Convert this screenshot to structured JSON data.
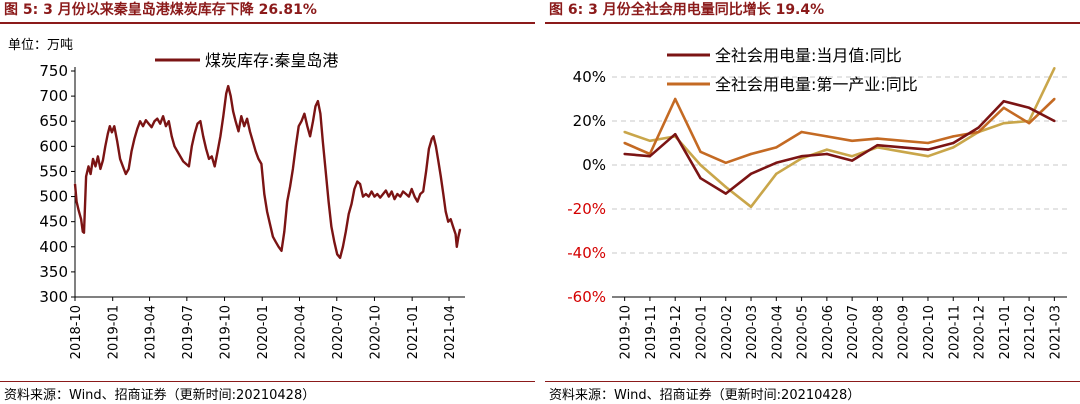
{
  "charts": [
    {
      "figure_title": "图 5:  3 月份以来秦皇岛港煤炭库存下降 26.81%",
      "source": "资料来源：Wind、招商证券（更新时间:20210428）",
      "chart_data": {
        "type": "line",
        "ylabel": "单位：万吨",
        "ylim": [
          300,
          750
        ],
        "y_ticks": [
          300,
          350,
          400,
          450,
          500,
          550,
          600,
          650,
          700,
          750
        ],
        "x_tick_labels": [
          "2018-10",
          "2019-01",
          "2019-04",
          "2019-07",
          "2019-10",
          "2020-01",
          "2020-04",
          "2020-07",
          "2020-10",
          "2021-01",
          "2021-04"
        ],
        "x_range": [
          "2018-10-01",
          "2021-05-10"
        ],
        "grid": false,
        "legend": "top",
        "series": [
          {
            "name": "煤炭库存:秦皇岛港",
            "color": "#7b1414",
            "points": [
              [
                "2018-10-01",
                525
              ],
              [
                "2018-10-05",
                490
              ],
              [
                "2018-10-10",
                472
              ],
              [
                "2018-10-16",
                455
              ],
              [
                "2018-10-20",
                430
              ],
              [
                "2018-10-23",
                428
              ],
              [
                "2018-10-28",
                540
              ],
              [
                "2018-11-03",
                560
              ],
              [
                "2018-11-08",
                545
              ],
              [
                "2018-11-14",
                575
              ],
              [
                "2018-11-20",
                560
              ],
              [
                "2018-11-26",
                580
              ],
              [
                "2018-12-02",
                555
              ],
              [
                "2018-12-08",
                572
              ],
              [
                "2018-12-14",
                600
              ],
              [
                "2018-12-20",
                625
              ],
              [
                "2018-12-25",
                640
              ],
              [
                "2018-12-30",
                628
              ],
              [
                "2019-01-05",
                640
              ],
              [
                "2019-01-12",
                610
              ],
              [
                "2019-01-19",
                575
              ],
              [
                "2019-01-26",
                560
              ],
              [
                "2019-02-02",
                545
              ],
              [
                "2019-02-09",
                555
              ],
              [
                "2019-02-16",
                590
              ],
              [
                "2019-02-23",
                615
              ],
              [
                "2019-03-02",
                635
              ],
              [
                "2019-03-09",
                650
              ],
              [
                "2019-03-16",
                640
              ],
              [
                "2019-03-23",
                652
              ],
              [
                "2019-03-30",
                645
              ],
              [
                "2019-04-06",
                638
              ],
              [
                "2019-04-13",
                650
              ],
              [
                "2019-04-20",
                655
              ],
              [
                "2019-04-27",
                645
              ],
              [
                "2019-05-04",
                660
              ],
              [
                "2019-05-11",
                640
              ],
              [
                "2019-05-18",
                650
              ],
              [
                "2019-05-25",
                620
              ],
              [
                "2019-06-01",
                600
              ],
              [
                "2019-06-08",
                590
              ],
              [
                "2019-06-15",
                580
              ],
              [
                "2019-06-22",
                570
              ],
              [
                "2019-06-29",
                565
              ],
              [
                "2019-07-06",
                560
              ],
              [
                "2019-07-13",
                600
              ],
              [
                "2019-07-20",
                625
              ],
              [
                "2019-07-27",
                645
              ],
              [
                "2019-08-03",
                650
              ],
              [
                "2019-08-10",
                620
              ],
              [
                "2019-08-17",
                595
              ],
              [
                "2019-08-24",
                575
              ],
              [
                "2019-08-31",
                580
              ],
              [
                "2019-09-07",
                560
              ],
              [
                "2019-09-14",
                590
              ],
              [
                "2019-09-21",
                620
              ],
              [
                "2019-09-28",
                660
              ],
              [
                "2019-10-05",
                705
              ],
              [
                "2019-10-10",
                720
              ],
              [
                "2019-10-16",
                700
              ],
              [
                "2019-10-22",
                670
              ],
              [
                "2019-10-28",
                650
              ],
              [
                "2019-11-04",
                630
              ],
              [
                "2019-11-11",
                660
              ],
              [
                "2019-11-18",
                640
              ],
              [
                "2019-11-25",
                655
              ],
              [
                "2019-12-02",
                630
              ],
              [
                "2019-12-09",
                610
              ],
              [
                "2019-12-16",
                590
              ],
              [
                "2019-12-23",
                575
              ],
              [
                "2019-12-30",
                565
              ],
              [
                "2020-01-06",
                505
              ],
              [
                "2020-01-13",
                470
              ],
              [
                "2020-01-20",
                445
              ],
              [
                "2020-01-27",
                420
              ],
              [
                "2020-02-03",
                410
              ],
              [
                "2020-02-10",
                400
              ],
              [
                "2020-02-17",
                392
              ],
              [
                "2020-02-24",
                430
              ],
              [
                "2020-03-02",
                490
              ],
              [
                "2020-03-09",
                520
              ],
              [
                "2020-03-16",
                555
              ],
              [
                "2020-03-23",
                600
              ],
              [
                "2020-03-30",
                640
              ],
              [
                "2020-04-06",
                650
              ],
              [
                "2020-04-13",
                665
              ],
              [
                "2020-04-20",
                640
              ],
              [
                "2020-04-27",
                620
              ],
              [
                "2020-05-04",
                650
              ],
              [
                "2020-05-10",
                680
              ],
              [
                "2020-05-16",
                690
              ],
              [
                "2020-05-22",
                665
              ],
              [
                "2020-05-28",
                610
              ],
              [
                "2020-06-04",
                550
              ],
              [
                "2020-06-11",
                490
              ],
              [
                "2020-06-18",
                440
              ],
              [
                "2020-06-25",
                410
              ],
              [
                "2020-07-02",
                385
              ],
              [
                "2020-07-09",
                378
              ],
              [
                "2020-07-16",
                400
              ],
              [
                "2020-07-23",
                430
              ],
              [
                "2020-07-30",
                465
              ],
              [
                "2020-08-06",
                485
              ],
              [
                "2020-08-13",
                515
              ],
              [
                "2020-08-20",
                530
              ],
              [
                "2020-08-27",
                525
              ],
              [
                "2020-09-03",
                500
              ],
              [
                "2020-09-10",
                505
              ],
              [
                "2020-09-17",
                500
              ],
              [
                "2020-09-24",
                510
              ],
              [
                "2020-10-01",
                500
              ],
              [
                "2020-10-08",
                505
              ],
              [
                "2020-10-15",
                498
              ],
              [
                "2020-10-22",
                505
              ],
              [
                "2020-10-29",
                512
              ],
              [
                "2020-11-05",
                500
              ],
              [
                "2020-11-12",
                510
              ],
              [
                "2020-11-19",
                495
              ],
              [
                "2020-11-26",
                505
              ],
              [
                "2020-12-03",
                500
              ],
              [
                "2020-12-10",
                510
              ],
              [
                "2020-12-17",
                505
              ],
              [
                "2020-12-24",
                500
              ],
              [
                "2020-12-31",
                515
              ],
              [
                "2021-01-07",
                500
              ],
              [
                "2021-01-14",
                490
              ],
              [
                "2021-01-21",
                505
              ],
              [
                "2021-01-28",
                510
              ],
              [
                "2021-02-04",
                550
              ],
              [
                "2021-02-11",
                595
              ],
              [
                "2021-02-18",
                615
              ],
              [
                "2021-02-22",
                620
              ],
              [
                "2021-02-28",
                600
              ],
              [
                "2021-03-06",
                570
              ],
              [
                "2021-03-12",
                540
              ],
              [
                "2021-03-18",
                505
              ],
              [
                "2021-03-24",
                470
              ],
              [
                "2021-03-30",
                450
              ],
              [
                "2021-04-05",
                455
              ],
              [
                "2021-04-11",
                440
              ],
              [
                "2021-04-17",
                425
              ],
              [
                "2021-04-20",
                400
              ],
              [
                "2021-04-24",
                420
              ],
              [
                "2021-04-28",
                435
              ]
            ]
          }
        ]
      }
    },
    {
      "figure_title": "图 6:  3 月份全社会用电量同比增长 19.4%",
      "source": "资料来源：Wind、招商证券（更新时间:20210428）",
      "chart_data": {
        "type": "line",
        "ylim": [
          -60,
          40
        ],
        "y_ticks": [
          -60,
          -40,
          -20,
          0,
          20,
          40
        ],
        "y_tick_labels": [
          "-60%",
          "-40%",
          "-20%",
          "0%",
          "20%",
          "40%"
        ],
        "categories": [
          "2019-10",
          "2019-11",
          "2019-12",
          "2020-01",
          "2020-02",
          "2020-03",
          "2020-04",
          "2020-05",
          "2020-06",
          "2020-07",
          "2020-08",
          "2020-09",
          "2020-10",
          "2020-11",
          "2020-12",
          "2021-01",
          "2021-02",
          "2021-03"
        ],
        "grid": true,
        "legend": "top-left",
        "series": [
          {
            "name": "全社会用电量:当月值:同比",
            "color": "#7b1414",
            "values": [
              5,
              4,
              14,
              -6,
              -13,
              -4,
              1,
              4,
              5,
              2,
              9,
              8,
              7,
              10,
              17,
              29,
              26,
              20
            ]
          },
          {
            "name": "全社会用电量:第一产业:同比",
            "color": "#c46a23",
            "values": [
              10,
              5,
              30,
              6,
              1,
              5,
              8,
              15,
              13,
              11,
              12,
              11,
              10,
              13,
              15,
              26,
              19,
              30
            ]
          },
          {
            "name": "",
            "color": "#c9a64a",
            "values": [
              15,
              11,
              13,
              0,
              -10,
              -19,
              -4,
              3,
              7,
              4,
              8,
              6,
              4,
              8,
              15,
              19,
              20,
              44
            ]
          }
        ]
      }
    }
  ]
}
